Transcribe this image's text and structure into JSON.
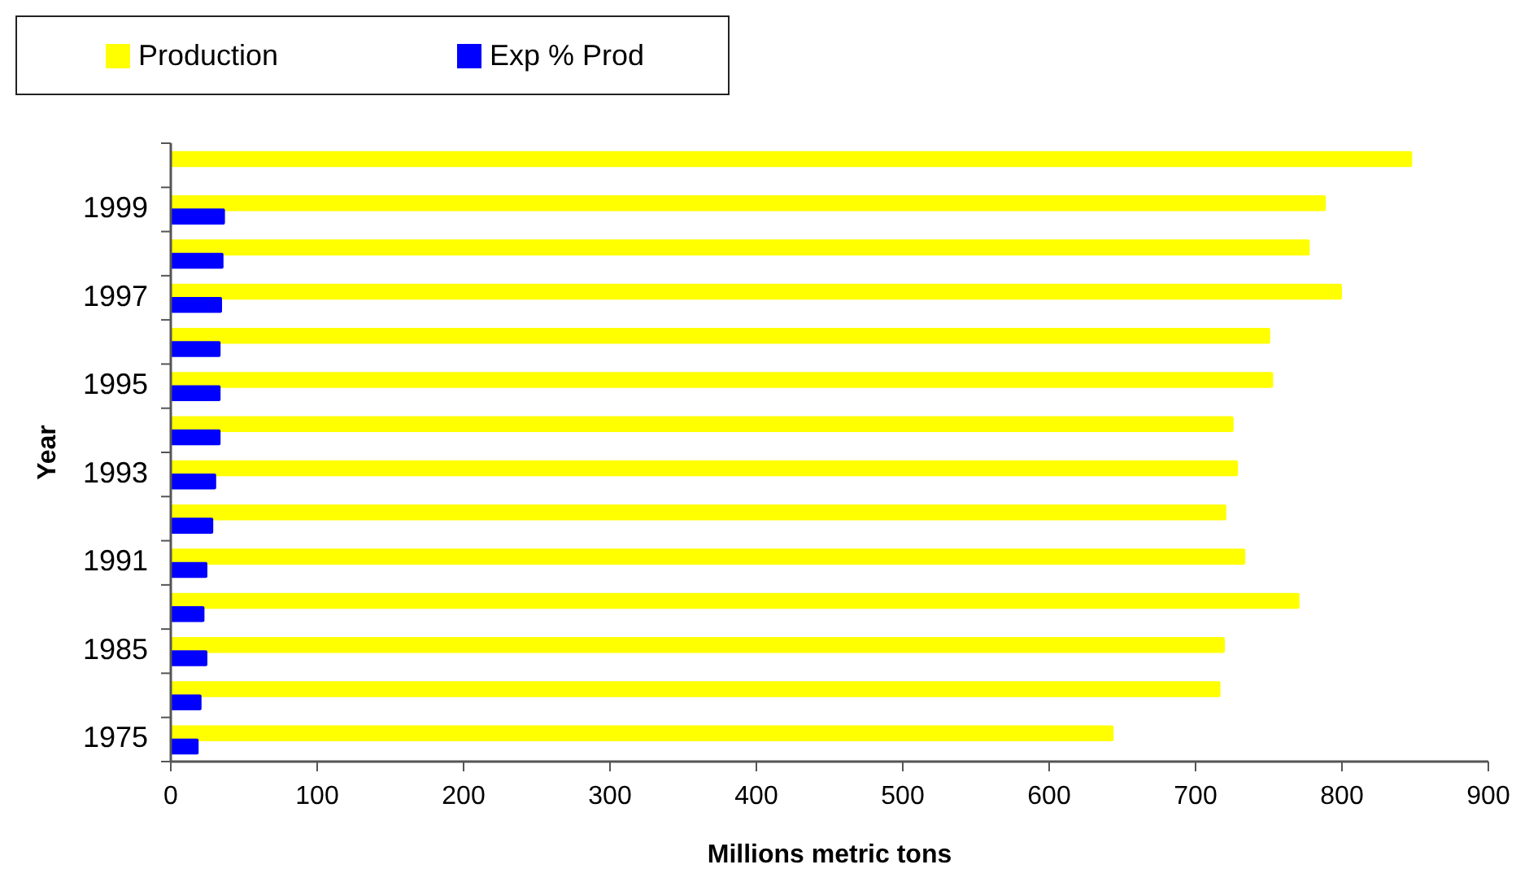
{
  "chart_data": {
    "type": "bar",
    "orientation": "horizontal",
    "xlabel": "Millions metric tons",
    "ylabel": "Year",
    "categories": [
      null,
      "1999",
      null,
      "1997",
      null,
      "1995",
      null,
      "1993",
      null,
      "1991",
      null,
      "1985",
      null,
      "1975"
    ],
    "series": [
      {
        "name": "Production",
        "color": "#ffff00",
        "values": [
          848,
          789,
          778,
          800,
          751,
          753,
          726,
          729,
          721,
          734,
          771,
          720,
          717,
          644
        ]
      },
      {
        "name": "Exp % Prod",
        "color": "#0000ff",
        "values": [
          null,
          37,
          36,
          35,
          34,
          34,
          34,
          31,
          29,
          25,
          23,
          25,
          21,
          19
        ]
      }
    ],
    "xlim": [
      0,
      900
    ],
    "xticks": [
      0,
      100,
      200,
      300,
      400,
      500,
      600,
      700,
      800,
      900
    ],
    "grid": false,
    "legend": "top left"
  }
}
